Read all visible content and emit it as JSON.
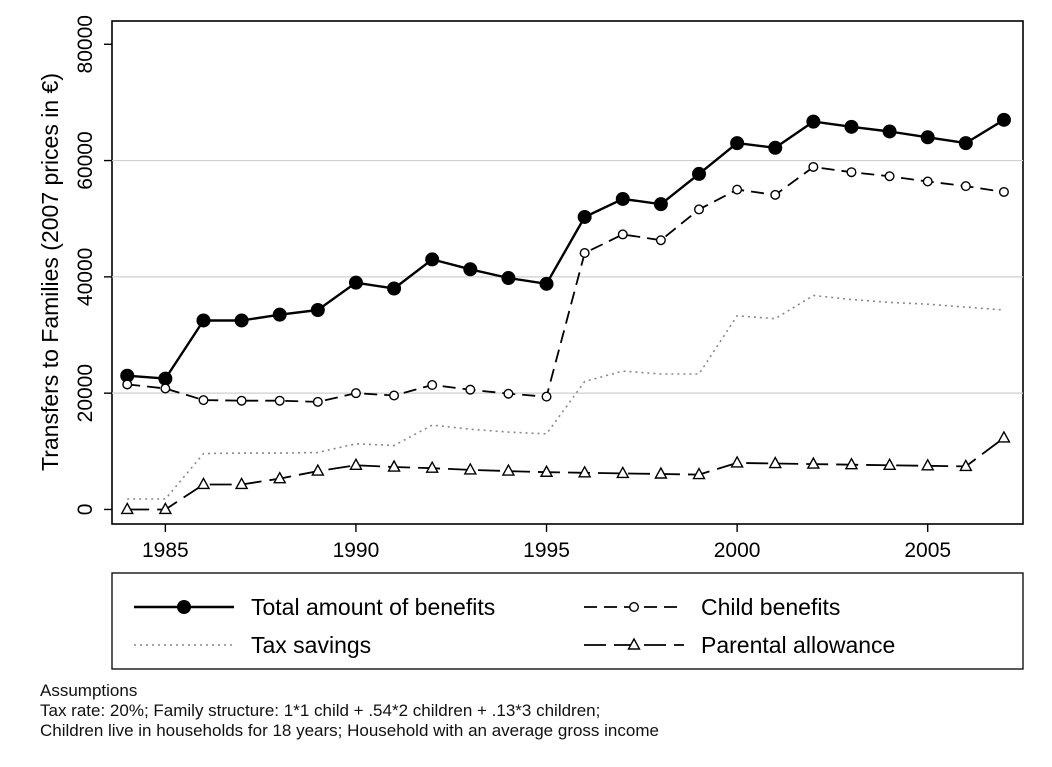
{
  "chart_data": {
    "type": "line",
    "ylabel": "Transfers to Families (2007 prices in €)",
    "xlabel": "",
    "xlim": [
      1983.6,
      2007.5
    ],
    "ylim": [
      -2500,
      84000
    ],
    "xticks": [
      1985,
      1990,
      1995,
      2000,
      2005
    ],
    "yticks": [
      0,
      20000,
      40000,
      60000,
      80000
    ],
    "grid": true,
    "legend_position": "bottom",
    "x": [
      1984,
      1985,
      1986,
      1987,
      1988,
      1989,
      1990,
      1991,
      1992,
      1993,
      1994,
      1995,
      1996,
      1997,
      1998,
      1999,
      2000,
      2001,
      2002,
      2003,
      2004,
      2005,
      2006,
      2007
    ],
    "series": [
      {
        "name": "Total amount of benefits",
        "style": "solid-filled-circle",
        "color": "#000000",
        "values": [
          23000,
          22500,
          32500,
          32500,
          33500,
          34300,
          39000,
          38000,
          43000,
          41300,
          39800,
          38800,
          50300,
          53400,
          52500,
          57700,
          63000,
          62200,
          66700,
          65800,
          65000,
          64000,
          63000,
          67000
        ]
      },
      {
        "name": "Child benefits",
        "style": "dashed-hollow-circle",
        "color": "#000000",
        "values": [
          21500,
          20800,
          18800,
          18700,
          18700,
          18500,
          20000,
          19600,
          21400,
          20600,
          19900,
          19400,
          44100,
          47300,
          46300,
          51600,
          55000,
          54100,
          58900,
          58000,
          57300,
          56400,
          55600,
          54600
        ]
      },
      {
        "name": "Tax savings",
        "style": "dotted",
        "color": "#888888",
        "values": [
          1800,
          1800,
          9600,
          9700,
          9700,
          9800,
          11300,
          11000,
          14500,
          13800,
          13300,
          13000,
          22000,
          23800,
          23300,
          23300,
          33300,
          32800,
          36800,
          36100,
          35600,
          35300,
          34800,
          34300
        ]
      },
      {
        "name": "Parental allowance",
        "style": "longdash-hollow-triangle",
        "color": "#000000",
        "values": [
          0,
          0,
          4300,
          4300,
          5300,
          6600,
          7600,
          7300,
          7100,
          6800,
          6600,
          6400,
          6300,
          6200,
          6100,
          6000,
          8000,
          7900,
          7800,
          7700,
          7600,
          7500,
          7400,
          12300
        ]
      }
    ]
  },
  "notes": {
    "heading": "Assumptions",
    "line1": "Tax rate: 20%; Family structure: 1*1 child + .54*2 children + .13*3 children;",
    "line2": "Children live in households for 18 years; Household with an average gross income"
  }
}
